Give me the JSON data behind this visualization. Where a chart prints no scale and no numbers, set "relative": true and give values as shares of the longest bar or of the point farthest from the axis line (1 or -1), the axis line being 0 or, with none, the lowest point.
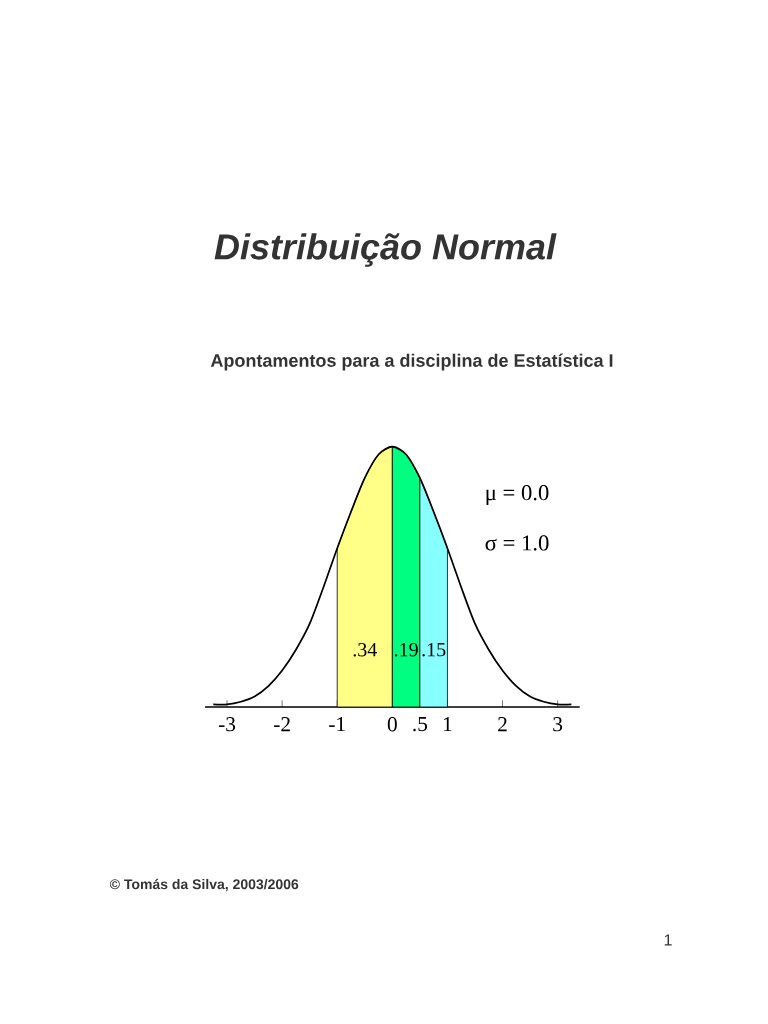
{
  "chart_data": {
    "type": "line",
    "title": "Distribuição Normal",
    "subtitle": "Apontamentos para a disciplina de Estatística I",
    "x": [
      -3.25,
      -3,
      -2.75,
      -2.5,
      -2.25,
      -2,
      -1.75,
      -1.5,
      -1.25,
      -1,
      -0.75,
      -0.5,
      -0.25,
      0,
      0.25,
      0.5,
      0.75,
      1,
      1.25,
      1.5,
      1.75,
      2,
      2.25,
      2.5,
      2.75,
      3,
      3.25
    ],
    "values": [
      0.01,
      0.01,
      0.02,
      0.04,
      0.08,
      0.14,
      0.22,
      0.32,
      0.46,
      0.61,
      0.75,
      0.88,
      0.97,
      1,
      0.97,
      0.88,
      0.75,
      0.61,
      0.46,
      0.32,
      0.22,
      0.14,
      0.08,
      0.04,
      0.02,
      0.01,
      0.01
    ],
    "color": "#000000",
    "relative": true,
    "xlim": [
      -3.4,
      3.4
    ],
    "xticks": [
      -3,
      -2,
      -1,
      0,
      {
        "value": 0.5,
        "label": ".5"
      },
      1,
      2,
      3
    ],
    "tick_labels": "x",
    "bands": [
      {
        "axis": "x",
        "from": -1,
        "to": 0,
        "label": ".34",
        "color": "#ffff88"
      },
      {
        "axis": "x",
        "from": 0,
        "to": 0.5,
        "label": ".19",
        "color": "#00ff80"
      },
      {
        "axis": "x",
        "from": 0.5,
        "to": 1,
        "label": ".15",
        "color": "#88ffff"
      }
    ],
    "annotations": [
      "μ = 0.0",
      "σ = 1.0",
      "© Tomás da Silva, 2003/2006",
      "1"
    ]
  }
}
